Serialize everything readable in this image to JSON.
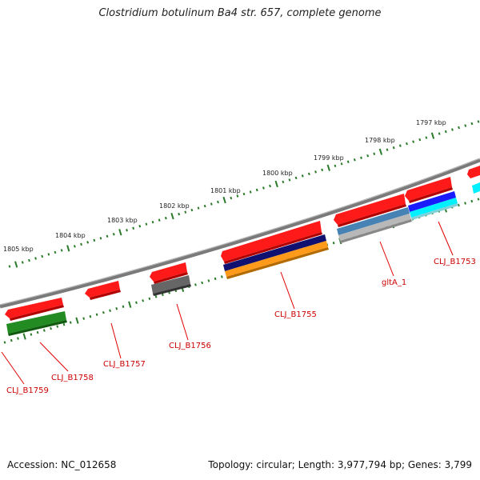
{
  "title": "Clostridium botulinum Ba4 str. 657, complete genome",
  "footer": {
    "accession": "Accession: NC_012658",
    "summary": "Topology: circular; Length: 3,977,794 bp; Genes: 3,799"
  },
  "scale_labels": [
    "1805 kbp",
    "1804 kbp",
    "1803 kbp",
    "1802 kbp",
    "1801 kbp",
    "1800 kbp",
    "1799 kbp",
    "1798 kbp",
    "1797 kbp"
  ],
  "gene_labels": [
    "CLJ_B1759",
    "CLJ_B1758",
    "CLJ_B1757",
    "CLJ_B1756",
    "CLJ_B1755",
    "gltA_1",
    "CLJ_B1753"
  ],
  "colors": {
    "backbone": "#7a7a7a",
    "ticks": "#2a7a2a",
    "cds": "#ff1a1a",
    "label_line": "#e00000",
    "dark_blue": "#101070",
    "orange": "#ff9a1a",
    "dark_gray": "#666666",
    "steel_blue": "#4682b4",
    "light_gray": "#b8b8b8",
    "blue": "#1a1aff",
    "cyan": "#00f0ff",
    "green": "#228b22"
  }
}
